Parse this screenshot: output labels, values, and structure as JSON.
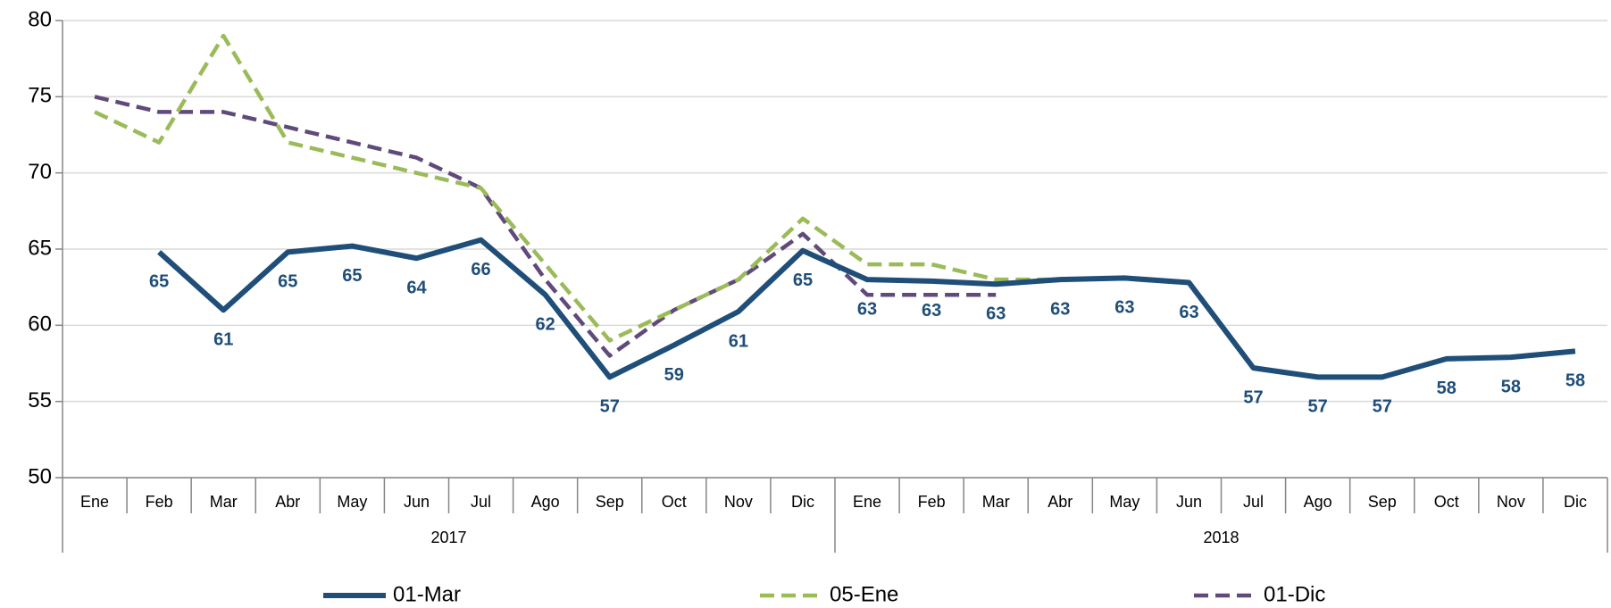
{
  "chart_data": {
    "type": "line",
    "categories": [
      "Ene",
      "Feb",
      "Mar",
      "Abr",
      "May",
      "Jun",
      "Jul",
      "Ago",
      "Sep",
      "Oct",
      "Nov",
      "Dic",
      "Ene",
      "Feb",
      "Mar",
      "Abr",
      "May",
      "Jun",
      "Jul",
      "Ago",
      "Sep",
      "Oct",
      "Nov",
      "Dic"
    ],
    "groups": [
      "2017",
      "2018"
    ],
    "series": [
      {
        "name": "01-Mar",
        "color": "#1f4e79",
        "style": "solid",
        "values": [
          null,
          64.8,
          61,
          64.8,
          65.2,
          64.4,
          65.6,
          62,
          56.6,
          58.7,
          60.9,
          64.9,
          63,
          62.9,
          62.7,
          63,
          63.1,
          62.8,
          57.2,
          56.6,
          56.6,
          57.8,
          57.9,
          58.3
        ],
        "value_labels": [
          null,
          "65",
          "61",
          "65",
          "65",
          "64",
          "66",
          "62",
          "57",
          "59",
          "61",
          "65",
          "63",
          "63",
          "63",
          "63",
          "63",
          "63",
          "57",
          "57",
          "57",
          "58",
          "58",
          "58"
        ]
      },
      {
        "name": "05-Ene",
        "color": "#9bbb59",
        "style": "dashed",
        "values": [
          74,
          72,
          79,
          72,
          71,
          70,
          69,
          64,
          59,
          61,
          63,
          67,
          64,
          64,
          63,
          63,
          null,
          null,
          null,
          null,
          null,
          null,
          null,
          null
        ]
      },
      {
        "name": "01-Dic",
        "color": "#604a7b",
        "style": "dashed",
        "values": [
          75,
          74,
          74,
          73,
          72,
          71,
          69,
          63,
          58,
          61,
          63,
          66,
          62,
          62,
          62,
          null,
          null,
          null,
          null,
          null,
          null,
          null,
          null,
          null
        ]
      }
    ],
    "ylim": [
      50,
      80
    ],
    "yticks": [
      50,
      55,
      60,
      65,
      70,
      75,
      80
    ],
    "grid": true
  }
}
